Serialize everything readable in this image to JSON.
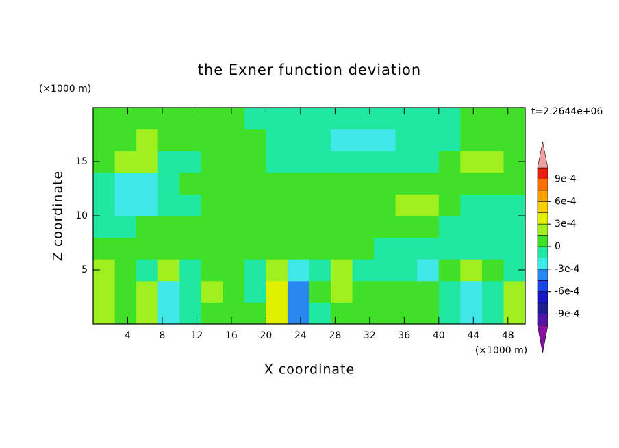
{
  "chart_data": {
    "type": "contour",
    "title": "the Exner function deviation",
    "x_label": "X coordinate",
    "y_label": "Z coordinate",
    "x_unit": "(×1000 m)",
    "y_unit": "(×1000 m)",
    "time_label": "t=2.2644e+06",
    "xlim": [
      0,
      50
    ],
    "ylim": [
      0,
      20
    ],
    "xticks": [
      4,
      8,
      12,
      16,
      20,
      24,
      28,
      32,
      36,
      40,
      44,
      48
    ],
    "yticks": [
      5,
      10,
      15
    ],
    "x": [
      1.25,
      3.75,
      6.25,
      8.75,
      11.25,
      13.75,
      16.25,
      18.75,
      21.25,
      23.75,
      26.25,
      28.75,
      31.25,
      33.75,
      36.25,
      38.75,
      41.25,
      43.75,
      46.25,
      48.75
    ],
    "y": [
      1,
      3,
      5,
      7,
      9,
      11,
      13,
      15,
      17,
      19
    ],
    "z": [
      [
        0.0002,
        7e-05,
        0.0002,
        -0.0002,
        -7e-05,
        7e-05,
        7e-05,
        7e-05,
        0.00035,
        -0.00035,
        -7e-05,
        7e-05,
        7e-05,
        7e-05,
        7e-05,
        7e-05,
        -7e-05,
        -0.0002,
        -7e-05,
        0.0002
      ],
      [
        0.0002,
        7e-05,
        0.0002,
        -0.0002,
        -7e-05,
        0.0002,
        7e-05,
        -7e-05,
        0.00035,
        -0.00035,
        7e-05,
        0.0002,
        7e-05,
        7e-05,
        7e-05,
        7e-05,
        -7e-05,
        -0.0002,
        -7e-05,
        0.0002
      ],
      [
        0.0002,
        7e-05,
        -7e-05,
        0.0002,
        -7e-05,
        7e-05,
        7e-05,
        -7e-05,
        0.0002,
        -0.0002,
        -7e-05,
        0.0002,
        -7e-05,
        -7e-05,
        -7e-05,
        -0.0002,
        7e-05,
        0.0002,
        7e-05,
        -7e-05
      ],
      [
        7e-05,
        7e-05,
        7e-05,
        7e-05,
        7e-05,
        7e-05,
        7e-05,
        7e-05,
        7e-05,
        7e-05,
        7e-05,
        7e-05,
        7e-05,
        -7e-05,
        -7e-05,
        -7e-05,
        -7e-05,
        -7e-05,
        -7e-05,
        -7e-05
      ],
      [
        -7e-05,
        -7e-05,
        7e-05,
        7e-05,
        7e-05,
        7e-05,
        7e-05,
        7e-05,
        7e-05,
        7e-05,
        7e-05,
        7e-05,
        7e-05,
        7e-05,
        7e-05,
        7e-05,
        -7e-05,
        -7e-05,
        -7e-05,
        -7e-05
      ],
      [
        -7e-05,
        -0.0002,
        -0.0002,
        -7e-05,
        -7e-05,
        7e-05,
        7e-05,
        7e-05,
        7e-05,
        7e-05,
        7e-05,
        7e-05,
        7e-05,
        7e-05,
        0.0002,
        0.0002,
        7e-05,
        -7e-05,
        -7e-05,
        -7e-05
      ],
      [
        -7e-05,
        -0.0002,
        -0.0002,
        -7e-05,
        7e-05,
        7e-05,
        7e-05,
        7e-05,
        7e-05,
        7e-05,
        7e-05,
        7e-05,
        7e-05,
        7e-05,
        7e-05,
        7e-05,
        7e-05,
        7e-05,
        7e-05,
        7e-05
      ],
      [
        7e-05,
        0.0002,
        0.0002,
        -7e-05,
        -7e-05,
        7e-05,
        7e-05,
        7e-05,
        -7e-05,
        -7e-05,
        -7e-05,
        -7e-05,
        -7e-05,
        -7e-05,
        -7e-05,
        -7e-05,
        7e-05,
        0.0002,
        0.0002,
        7e-05
      ],
      [
        7e-05,
        7e-05,
        0.0002,
        7e-05,
        7e-05,
        7e-05,
        7e-05,
        7e-05,
        -7e-05,
        -7e-05,
        -7e-05,
        -0.0002,
        -0.0002,
        -0.0002,
        -7e-05,
        -7e-05,
        -7e-05,
        7e-05,
        7e-05,
        7e-05
      ],
      [
        7e-05,
        7e-05,
        7e-05,
        7e-05,
        7e-05,
        7e-05,
        7e-05,
        -7e-05,
        -7e-05,
        -7e-05,
        -7e-05,
        -7e-05,
        -7e-05,
        -7e-05,
        -7e-05,
        -7e-05,
        -7e-05,
        7e-05,
        7e-05,
        7e-05
      ]
    ],
    "colorbar": {
      "levels": [
        -0.00105,
        -0.0009,
        -0.00075,
        -0.0006,
        -0.00045,
        -0.0003,
        -0.00015,
        0,
        0.00015,
        0.0003,
        0.00045,
        0.0006,
        0.00075,
        0.0009,
        0.00105
      ],
      "colors": [
        "#5018a0",
        "#20208c",
        "#1818c0",
        "#1848e8",
        "#2888f0",
        "#40e8e8",
        "#20e8a0",
        "#40e028",
        "#a0f020",
        "#e0f000",
        "#f8d000",
        "#f8a000",
        "#f87000",
        "#e82010"
      ],
      "under_color": "#8a10a0",
      "over_color": "#f0a0a0",
      "ticks": [
        {
          "value": -0.0009,
          "label": "-9e-4"
        },
        {
          "value": -0.0006,
          "label": "-6e-4"
        },
        {
          "value": -0.0003,
          "label": "-3e-4"
        },
        0,
        {
          "value": 0.0003,
          "label": "3e-4"
        },
        {
          "value": 0.0006,
          "label": "6e-4"
        },
        {
          "value": 0.0009,
          "label": "9e-4"
        }
      ]
    }
  }
}
